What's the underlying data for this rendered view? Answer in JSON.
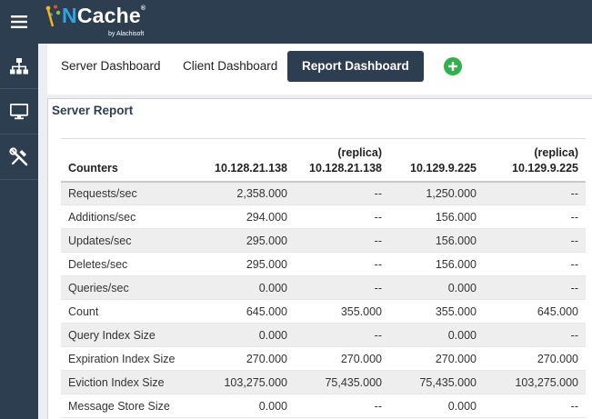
{
  "app": {
    "brand_n": "N",
    "brand_rest": "Cache",
    "brand_reg": "®",
    "brand_sub": "by Alachisoft",
    "icons": {
      "menu": "hamburger-menu-icon",
      "topology": "topology-icon",
      "monitor": "monitor-icon",
      "tools": "tools-icon",
      "add": "plus-icon"
    },
    "colors": {
      "topbar": "#2d3e50",
      "active_tab": "#2d3e50",
      "add_button": "#2db34a",
      "brand_accent": "#2fa4e0"
    }
  },
  "tabs": [
    {
      "label": "Server Dashboard"
    },
    {
      "label": "Client Dashboard"
    },
    {
      "label": "Report Dashboard",
      "active": true
    }
  ],
  "report": {
    "title": "Server Report",
    "headers": [
      {
        "line1": "",
        "line2": "Counters"
      },
      {
        "line1": "",
        "line2": "10.128.21.138"
      },
      {
        "line1": "(replica)",
        "line2": "10.128.21.138"
      },
      {
        "line1": "",
        "line2": "10.129.9.225"
      },
      {
        "line1": "(replica)",
        "line2": "10.129.9.225"
      }
    ],
    "rows": [
      [
        "Requests/sec",
        "2,358.000",
        "--",
        "1,250.000",
        "--"
      ],
      [
        "Additions/sec",
        "294.000",
        "--",
        "156.000",
        "--"
      ],
      [
        "Updates/sec",
        "295.000",
        "--",
        "156.000",
        "--"
      ],
      [
        "Deletes/sec",
        "295.000",
        "--",
        "156.000",
        "--"
      ],
      [
        "Queries/sec",
        "0.000",
        "--",
        "0.000",
        "--"
      ],
      [
        "Count",
        "645.000",
        "355.000",
        "355.000",
        "645.000"
      ],
      [
        "Query Index Size",
        "0.000",
        "--",
        "0.000",
        "--"
      ],
      [
        "Expiration Index Size",
        "270.000",
        "270.000",
        "270.000",
        "270.000"
      ],
      [
        "Eviction Index Size",
        "103,275.000",
        "75,435.000",
        "75,435.000",
        "103,275.000"
      ],
      [
        "Message Store Size",
        "0.000",
        "--",
        "0.000",
        "--"
      ]
    ]
  }
}
